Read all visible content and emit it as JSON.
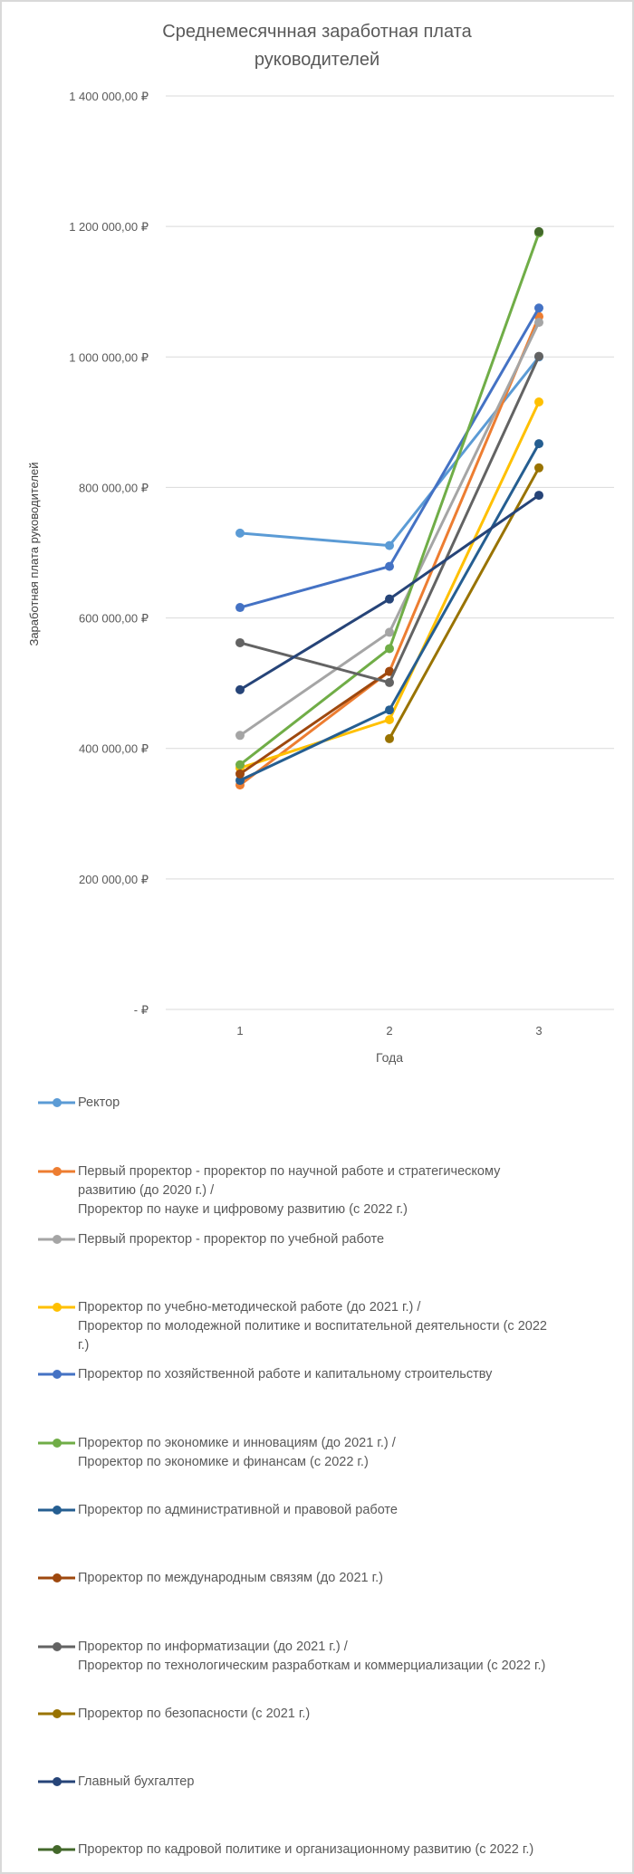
{
  "chart_data": {
    "type": "line",
    "title": "Среднемесячнная заработная плата руководителей",
    "title_lines": [
      "Среднемесячнная заработная плата",
      "руководителей"
    ],
    "xlabel": "Года",
    "ylabel": "Заработная плата руководителей",
    "categories": [
      "1",
      "2",
      "3"
    ],
    "ylim": [
      0,
      1400000
    ],
    "yticks": [
      0,
      200000,
      400000,
      600000,
      800000,
      1000000,
      1200000,
      1400000
    ],
    "ytick_labels": [
      "-   ₽",
      "200 000,00 ₽",
      "400 000,00 ₽",
      "600 000,00 ₽",
      "800 000,00 ₽",
      "1 000 000,00 ₽",
      "1 200 000,00 ₽",
      "1 400 000,00 ₽"
    ],
    "grid": true,
    "legend_position": "bottom",
    "series": [
      {
        "name": "Ректор",
        "legend_lines": [
          "Ректор"
        ],
        "color": "#5B9BD5",
        "values": [
          730000,
          711000,
          1000000
        ]
      },
      {
        "name": "Первый проректор - проректор по научной работе и стратегическому развитию (до 2020 г.) / Проректор по науке и цифровому развитию (с 2022 г.)",
        "legend_lines": [
          "Первый проректор - проректор по научной работе и стратегическому",
          "развитию (до 2020 г.) /",
          "Проректор по науке и цифровому развитию (с 2022 г.)"
        ],
        "color": "#ED7D31",
        "values": [
          344000,
          518000,
          1062000
        ]
      },
      {
        "name": "Первый проректор - проректор по учебной работе",
        "legend_lines": [
          "Первый проректор - проректор по учебной работе"
        ],
        "color": "#A5A5A5",
        "values": [
          420000,
          578000,
          1053000
        ]
      },
      {
        "name": "Проректор по учебно-методической работе (до 2021 г.) / Проректор по молодежной политике и воспитательной деятельности (с 2022 г.)",
        "legend_lines": [
          "Проректор по учебно-методической работе (до 2021 г.) /",
          "Проректор по молодежной политике и воспитательной деятельности (с 2022",
          "г.)"
        ],
        "color": "#FFC000",
        "values": [
          370000,
          444000,
          931000
        ]
      },
      {
        "name": "Проректор по хозяйственной работе и капитальному строительству",
        "legend_lines": [
          "Проректор по хозяйственной работе и капитальному строительству"
        ],
        "color": "#4472C4",
        "values": [
          616000,
          679000,
          1075000
        ]
      },
      {
        "name": "Проректор по экономике и инновациям (до 2021 г.) / Проректор по экономике и финансам (с 2022 г.)",
        "legend_lines": [
          "Проректор по экономике и инновациям (до 2021 г.) /",
          "Проректор по экономике и финансам (с 2022 г.)"
        ],
        "color": "#70AD47",
        "values": [
          375000,
          553000,
          1190000
        ]
      },
      {
        "name": "Проректор по административной и правовой работе",
        "legend_lines": [
          "Проректор по административной и правовой работе"
        ],
        "color": "#255E91",
        "values": [
          351000,
          459000,
          867000
        ]
      },
      {
        "name": "Проректор по международным связям (до 2021 г.)",
        "legend_lines": [
          "Проректор по международным связям (до 2021 г.)"
        ],
        "color": "#9E480E",
        "values": [
          361000,
          518000,
          null
        ]
      },
      {
        "name": "Проректор по информатизации (до 2021 г.) / Проректор по технологическим разработкам и коммерциализации (с 2022 г.)",
        "legend_lines": [
          "Проректор по информатизации (до 2021 г.) /",
          "Проректор по технологическим разработкам и коммерциализации (с 2022 г.)"
        ],
        "color": "#636363",
        "values": [
          562000,
          501000,
          1001000
        ]
      },
      {
        "name": "Проректор по безопасности (с 2021 г.)",
        "legend_lines": [
          "Проректор по безопасности (с 2021 г.)"
        ],
        "color": "#997300",
        "values": [
          null,
          415000,
          830000
        ]
      },
      {
        "name": "Главный бухгалтер",
        "legend_lines": [
          "Главный бухгалтер"
        ],
        "color": "#264478",
        "values": [
          490000,
          629000,
          788000
        ]
      },
      {
        "name": "Проректор по кадровой политике и организационному развитию (с 2022 г.)",
        "legend_lines": [
          "Проректор по кадровой политике и организационному развитию (с 2022 г.)"
        ],
        "color": "#43682B",
        "values": [
          null,
          null,
          1192000
        ]
      }
    ]
  }
}
